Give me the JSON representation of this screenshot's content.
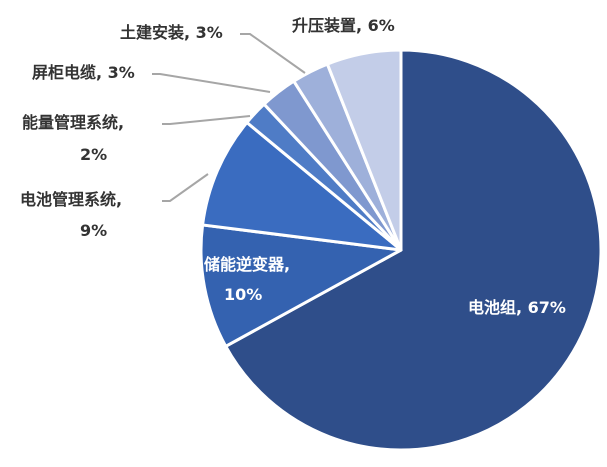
{
  "chart_data": {
    "type": "pie",
    "slices": [
      {
        "label": "电池组",
        "pct_text": "67%",
        "value": 67,
        "color": "#2f4e8a"
      },
      {
        "label": "储能逆变器",
        "pct_text": "10%",
        "value": 10,
        "color": "#3462b0"
      },
      {
        "label": "电池管理系统",
        "pct_text": "9%",
        "value": 9,
        "color": "#3a6cc0"
      },
      {
        "label": "能量管理系统",
        "pct_text": "2%",
        "value": 2,
        "color": "#4f7cc6"
      },
      {
        "label": "屏柜电缆",
        "pct_text": "3%",
        "value": 3,
        "color": "#7f98cf"
      },
      {
        "label": "土建安装",
        "pct_text": "3%",
        "value": 3,
        "color": "#9eb0da"
      },
      {
        "label": "升压装置",
        "pct_text": "6%",
        "value": 6,
        "color": "#c3cde8"
      }
    ]
  }
}
